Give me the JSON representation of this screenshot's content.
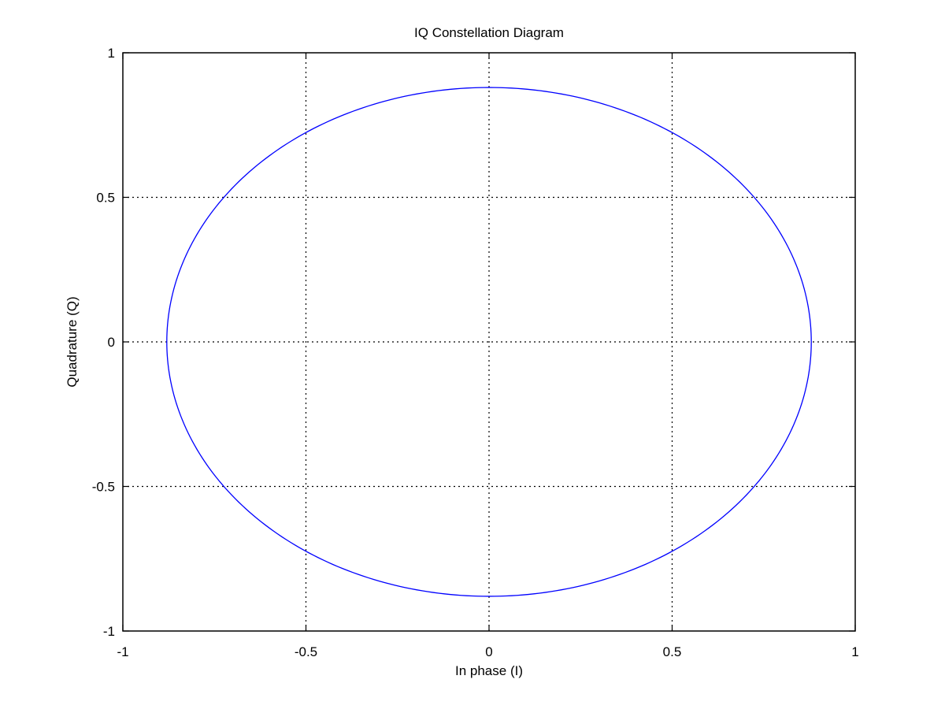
{
  "chart_data": {
    "type": "line",
    "title": "IQ Constellation Diagram",
    "xlabel": "In phase (I)",
    "ylabel": "Quadrature (Q)",
    "xlim": [
      -1,
      1
    ],
    "ylim": [
      -1,
      1
    ],
    "xticks": [
      -1,
      -0.5,
      0,
      0.5,
      1
    ],
    "yticks": [
      -1,
      -0.5,
      0,
      0.5,
      1
    ],
    "xtick_labels": [
      "-1",
      "-0.5",
      "0",
      "0.5",
      "1"
    ],
    "ytick_labels": [
      "-1",
      "-0.5",
      "0",
      "0.5",
      "1"
    ],
    "grid": true,
    "grid_style": "dotted",
    "series": [
      {
        "shape": "circle",
        "center": [
          0,
          0
        ],
        "radius": 0.88,
        "color": "#0000ff"
      }
    ]
  }
}
